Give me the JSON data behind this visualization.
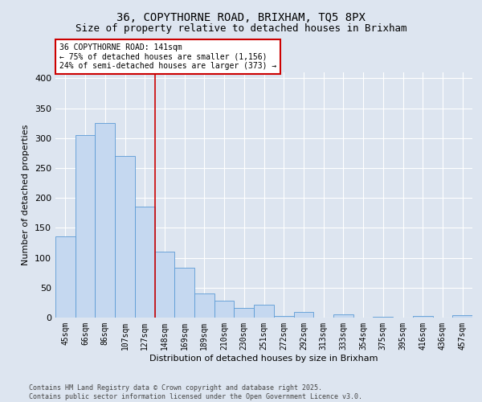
{
  "title1": "36, COPYTHORNE ROAD, BRIXHAM, TQ5 8PX",
  "title2": "Size of property relative to detached houses in Brixham",
  "xlabel": "Distribution of detached houses by size in Brixham",
  "ylabel": "Number of detached properties",
  "categories": [
    "45sqm",
    "66sqm",
    "86sqm",
    "107sqm",
    "127sqm",
    "148sqm",
    "169sqm",
    "189sqm",
    "210sqm",
    "230sqm",
    "251sqm",
    "272sqm",
    "292sqm",
    "313sqm",
    "333sqm",
    "354sqm",
    "375sqm",
    "395sqm",
    "416sqm",
    "436sqm",
    "457sqm"
  ],
  "values": [
    136,
    305,
    325,
    270,
    186,
    110,
    83,
    40,
    28,
    16,
    22,
    3,
    9,
    0,
    5,
    0,
    1,
    0,
    3,
    0,
    4
  ],
  "bar_color": "#c5d8f0",
  "bar_edge_color": "#5b9bd5",
  "vline_color": "#cc0000",
  "annotation_text": "36 COPYTHORNE ROAD: 141sqm\n← 75% of detached houses are smaller (1,156)\n24% of semi-detached houses are larger (373) →",
  "annotation_box_color": "#ffffff",
  "annotation_box_edge": "#cc0000",
  "footer": "Contains HM Land Registry data © Crown copyright and database right 2025.\nContains public sector information licensed under the Open Government Licence v3.0.",
  "ylim": [
    0,
    410
  ],
  "yticks": [
    0,
    50,
    100,
    150,
    200,
    250,
    300,
    350,
    400
  ],
  "bg_color": "#dde5f0",
  "plot_bg_color": "#dde5f0",
  "grid_color": "#ffffff",
  "title_fontsize": 10,
  "subtitle_fontsize": 9,
  "axis_label_fontsize": 8,
  "tick_fontsize": 7,
  "footer_fontsize": 6
}
